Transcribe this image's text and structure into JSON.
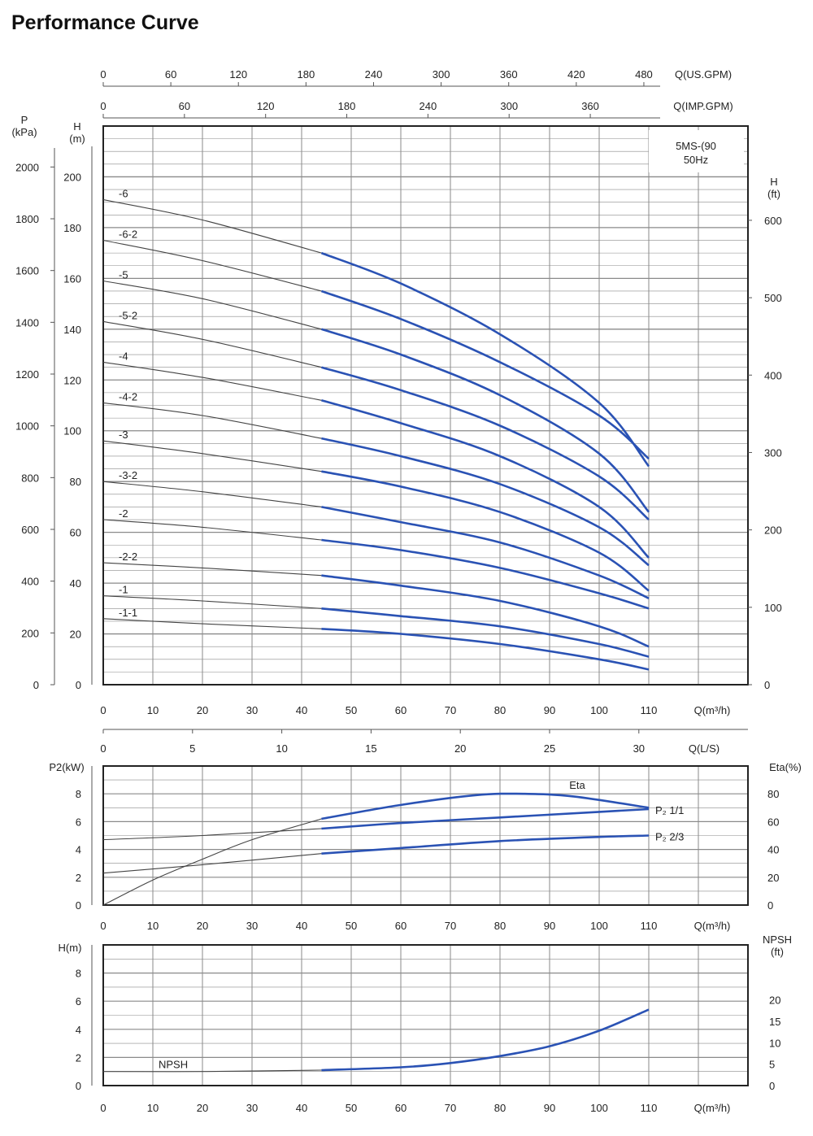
{
  "page": {
    "title": "Performance Curve"
  },
  "colors": {
    "grid": "#8a8a8a",
    "frame": "#222222",
    "thin_curve": "#444444",
    "blue_curve": "#2a52b4"
  },
  "chart_data": [
    {
      "type": "line",
      "name": "head",
      "model_label": [
        "5MS-(90",
        "50Hz"
      ],
      "x": {
        "label": "Q(m³/h)",
        "range": [
          0,
          130
        ],
        "ticks": [
          0,
          10,
          20,
          30,
          40,
          50,
          60,
          70,
          80,
          90,
          100,
          110
        ],
        "tick_labels": [
          "0",
          "10",
          "20",
          "30",
          "40",
          "50",
          "60",
          "70",
          "80",
          "90",
          "100",
          "110"
        ]
      },
      "x_top_axes": [
        {
          "label": "Q(US.GPM)",
          "ticks": [
            0,
            60,
            120,
            180,
            240,
            300,
            360,
            420,
            480
          ],
          "tick_labels": [
            "0",
            "60",
            "120",
            "180",
            "240",
            "300",
            "360",
            "420",
            "480"
          ],
          "q_m3h_per_unit": 0.2271
        },
        {
          "label": "Q(IMP.GPM)",
          "ticks": [
            0,
            60,
            120,
            180,
            240,
            300,
            360
          ],
          "tick_labels": [
            "0",
            "60",
            "120",
            "180",
            "240",
            "300",
            "360"
          ],
          "q_m3h_per_unit": 0.2728
        }
      ],
      "y": {
        "label": "H\n(m)",
        "range": [
          0,
          220
        ],
        "ticks": [
          0,
          20,
          40,
          60,
          80,
          100,
          120,
          140,
          160,
          180,
          200
        ],
        "tick_labels": [
          "0",
          "20",
          "40",
          "60",
          "80",
          "100",
          "120",
          "140",
          "160",
          "180",
          "200"
        ]
      },
      "y_left2": {
        "label": "P\n(kPa)",
        "ticks": [
          0,
          200,
          400,
          600,
          800,
          1000,
          1200,
          1400,
          1600,
          1800,
          2000
        ],
        "tick_labels": [
          "0",
          "200",
          "400",
          "600",
          "800",
          "1000",
          "1200",
          "1400",
          "1600",
          "1800",
          "2000"
        ],
        "unit_per_m": 9.81
      },
      "y_right": {
        "label": "H\n(ft)",
        "ticks": [
          0,
          100,
          200,
          300,
          400,
          500,
          600
        ],
        "tick_labels": [
          "0",
          "100",
          "200",
          "300",
          "400",
          "500",
          "600"
        ],
        "unit_per_m": 3.2808
      },
      "operating_range_start": 44,
      "series": [
        {
          "name": "-6",
          "x": [
            0,
            20,
            44,
            60,
            80,
            100,
            110
          ],
          "y": [
            191,
            183,
            170,
            158,
            138,
            111,
            86
          ]
        },
        {
          "name": "-6-2",
          "x": [
            0,
            20,
            44,
            60,
            80,
            100,
            110
          ],
          "y": [
            175,
            167,
            155,
            144,
            127,
            106,
            89
          ]
        },
        {
          "name": "-5",
          "x": [
            0,
            20,
            44,
            60,
            80,
            100,
            110
          ],
          "y": [
            159,
            152,
            140,
            130,
            114,
            91,
            68
          ]
        },
        {
          "name": "-5-2",
          "x": [
            0,
            20,
            44,
            60,
            80,
            100,
            110
          ],
          "y": [
            143,
            136,
            125,
            116,
            102,
            82,
            65
          ]
        },
        {
          "name": "-4",
          "x": [
            0,
            20,
            44,
            60,
            80,
            100,
            110
          ],
          "y": [
            127,
            121,
            112,
            103,
            90,
            70,
            50
          ]
        },
        {
          "name": "-4-2",
          "x": [
            0,
            20,
            44,
            60,
            80,
            100,
            110
          ],
          "y": [
            111,
            106,
            97,
            90,
            79,
            62,
            47
          ]
        },
        {
          "name": "-3",
          "x": [
            0,
            20,
            44,
            60,
            80,
            100,
            110
          ],
          "y": [
            96,
            91,
            84,
            78,
            68,
            52,
            37
          ]
        },
        {
          "name": "-3-2",
          "x": [
            0,
            20,
            44,
            60,
            80,
            100,
            110
          ],
          "y": [
            80,
            76,
            70,
            64,
            56,
            43,
            34
          ]
        },
        {
          "name": "-2",
          "x": [
            0,
            20,
            44,
            60,
            80,
            100,
            110
          ],
          "y": [
            65,
            62,
            57,
            53,
            46,
            36,
            30
          ]
        },
        {
          "name": "-2-2",
          "x": [
            0,
            20,
            44,
            60,
            80,
            100,
            110
          ],
          "y": [
            48,
            46,
            43,
            39,
            33,
            23,
            15
          ]
        },
        {
          "name": "-1",
          "x": [
            0,
            20,
            44,
            60,
            80,
            100,
            110
          ],
          "y": [
            35,
            33,
            30,
            27,
            23,
            16,
            11
          ]
        },
        {
          "name": "-1-1",
          "x": [
            0,
            20,
            44,
            60,
            80,
            100,
            110
          ],
          "y": [
            26,
            24,
            22,
            20,
            16,
            10,
            6
          ]
        }
      ]
    },
    {
      "type": "line",
      "name": "power-efficiency",
      "x": {
        "label": "Q(m³/h)",
        "range": [
          0,
          130
        ],
        "ticks": [
          0,
          10,
          20,
          30,
          40,
          50,
          60,
          70,
          80,
          90,
          100,
          110
        ],
        "tick_labels": [
          "0",
          "10",
          "20",
          "30",
          "40",
          "50",
          "60",
          "70",
          "80",
          "90",
          "100",
          "110"
        ]
      },
      "x_top_axis": {
        "label": "Q(L/S)",
        "ticks": [
          0,
          5,
          10,
          15,
          20,
          25,
          30
        ],
        "tick_labels": [
          "0",
          "5",
          "10",
          "15",
          "20",
          "25",
          "30"
        ],
        "q_m3h_per_unit": 3.6
      },
      "y": {
        "label": "P2(kW)",
        "range": [
          0,
          10
        ],
        "ticks": [
          0,
          2,
          4,
          6,
          8
        ],
        "tick_labels": [
          "0",
          "2",
          "4",
          "6",
          "8"
        ]
      },
      "y_right": {
        "label": "Eta(%)",
        "range": [
          0,
          100
        ],
        "ticks": [
          0,
          20,
          40,
          60,
          80
        ],
        "tick_labels": [
          "0",
          "20",
          "40",
          "60",
          "80"
        ]
      },
      "operating_range_start": 44,
      "series": [
        {
          "name": "Eta",
          "axis": "right",
          "x": [
            0,
            10,
            20,
            30,
            44,
            60,
            75,
            85,
            95,
            110
          ],
          "y": [
            0,
            18,
            33,
            47,
            62,
            72,
            79,
            80,
            78,
            70
          ]
        },
        {
          "name": "P₂ 1/1",
          "axis": "left",
          "x": [
            0,
            20,
            44,
            60,
            80,
            100,
            110
          ],
          "y": [
            4.7,
            5.0,
            5.5,
            5.9,
            6.3,
            6.7,
            6.9
          ]
        },
        {
          "name": "P₂ 2/3",
          "axis": "left",
          "x": [
            0,
            20,
            44,
            60,
            80,
            100,
            110
          ],
          "y": [
            2.3,
            2.9,
            3.7,
            4.1,
            4.6,
            4.9,
            5.0
          ]
        }
      ]
    },
    {
      "type": "line",
      "name": "npsh",
      "x": {
        "label": "Q(m³/h)",
        "range": [
          0,
          130
        ],
        "ticks": [
          0,
          10,
          20,
          30,
          40,
          50,
          60,
          70,
          80,
          90,
          100,
          110
        ],
        "tick_labels": [
          "0",
          "10",
          "20",
          "30",
          "40",
          "50",
          "60",
          "70",
          "80",
          "90",
          "100",
          "110"
        ]
      },
      "y": {
        "label": "H(m)",
        "range": [
          0,
          10
        ],
        "ticks": [
          0,
          2,
          4,
          6,
          8
        ],
        "tick_labels": [
          "0",
          "2",
          "4",
          "6",
          "8"
        ]
      },
      "y_right": {
        "label": "NPSH\n(ft)",
        "ticks": [
          0,
          5,
          10,
          15,
          20
        ],
        "tick_labels": [
          "0",
          "5",
          "10",
          "15",
          "20"
        ],
        "unit_per_m": 3.2808
      },
      "operating_range_start": 44,
      "series": [
        {
          "name": "NPSH",
          "x": [
            0,
            20,
            44,
            60,
            70,
            80,
            90,
            100,
            110
          ],
          "y": [
            1.0,
            1.0,
            1.1,
            1.3,
            1.6,
            2.1,
            2.8,
            3.9,
            5.4
          ]
        }
      ]
    }
  ]
}
